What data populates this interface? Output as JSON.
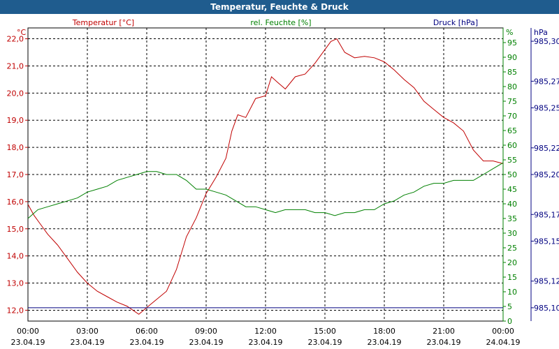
{
  "window_title": "Temperatur, Feuchte & Druck",
  "colors": {
    "temperature": "#c00000",
    "humidity": "#008000",
    "pressure": "#000080",
    "titlebar": "#1f5c8e"
  },
  "chart_data": {
    "type": "line",
    "title": "Temperatur, Feuchte & Druck",
    "grid": true,
    "legend": "top",
    "x_axis": {
      "range_hours": [
        0,
        24
      ],
      "tick_hours": [
        0,
        3,
        6,
        9,
        12,
        15,
        18,
        21,
        24
      ],
      "tick_labels": [
        [
          "00:00",
          "23.04.19"
        ],
        [
          "03:00",
          "23.04.19"
        ],
        [
          "06:00",
          "23.04.19"
        ],
        [
          "09:00",
          "23.04.19"
        ],
        [
          "12:00",
          "23.04.19"
        ],
        [
          "15:00",
          "23.04.19"
        ],
        [
          "18:00",
          "23.04.19"
        ],
        [
          "21:00",
          "23.04.19"
        ],
        [
          "00:00",
          "24.04.19"
        ]
      ]
    },
    "axes": {
      "temperature": {
        "unit": "°C",
        "range": [
          11.6,
          22.4
        ],
        "ticks": [
          "12,0",
          "13,0",
          "14,0",
          "15,0",
          "16,0",
          "17,0",
          "18,0",
          "19,0",
          "20,0",
          "21,0",
          "22,0"
        ]
      },
      "humidity": {
        "unit": "%",
        "range": [
          0,
          100
        ],
        "ticks": [
          "0",
          "5",
          "10",
          "15",
          "20",
          "25",
          "30",
          "35",
          "40",
          "45",
          "50",
          "55",
          "60",
          "65",
          "70",
          "75",
          "80",
          "85",
          "90",
          "95"
        ]
      },
      "pressure": {
        "unit": "hPa",
        "range": [
          985.09,
          985.31
        ],
        "ticks": [
          "985,10",
          "985,12",
          "985,15",
          "985,17",
          "985,20",
          "985,22",
          "985,25",
          "985,27",
          "985,30"
        ]
      }
    },
    "series": [
      {
        "name": "Temperatur [°C]",
        "axis": "temperature",
        "x": [
          0,
          0.3,
          0.6,
          1,
          1.5,
          2,
          2.5,
          3,
          3.5,
          4,
          4.5,
          5,
          5.3,
          5.6,
          6,
          6.5,
          7,
          7.5,
          8,
          8.5,
          9,
          9.5,
          10,
          10.3,
          10.6,
          11,
          11.5,
          12,
          12.3,
          12.6,
          13,
          13.5,
          14,
          14.5,
          15,
          15.3,
          15.6,
          16,
          16.5,
          17,
          17.5,
          18,
          18.5,
          19,
          19.5,
          20,
          20.5,
          21,
          21.5,
          22,
          22.5,
          23,
          23.5,
          24
        ],
        "values": [
          15.9,
          15.5,
          15.2,
          14.8,
          14.4,
          13.9,
          13.4,
          13.0,
          12.7,
          12.5,
          12.3,
          12.15,
          12.0,
          11.85,
          12.1,
          12.4,
          12.7,
          13.5,
          14.7,
          15.4,
          16.3,
          16.9,
          17.6,
          18.6,
          19.2,
          19.1,
          19.8,
          19.9,
          20.6,
          20.4,
          20.15,
          20.6,
          20.7,
          21.1,
          21.6,
          21.9,
          22.0,
          21.5,
          21.3,
          21.35,
          21.3,
          21.15,
          20.85,
          20.5,
          20.2,
          19.7,
          19.4,
          19.1,
          18.9,
          18.6,
          17.9,
          17.5,
          17.5,
          17.4
        ]
      },
      {
        "name": "rel. Feuchte [%]",
        "axis": "humidity",
        "x": [
          0,
          0.5,
          1,
          1.5,
          2,
          2.5,
          3,
          3.5,
          4,
          4.5,
          5,
          5.5,
          6,
          6.5,
          7,
          7.5,
          8,
          8.5,
          9,
          9.5,
          10,
          10.5,
          11,
          11.5,
          12,
          12.5,
          13,
          13.5,
          14,
          14.5,
          15,
          15.5,
          16,
          16.5,
          17,
          17.5,
          18,
          18.5,
          19,
          19.5,
          20,
          20.5,
          21,
          21.5,
          22,
          22.5,
          23,
          23.5,
          24
        ],
        "values": [
          35,
          38,
          39,
          40,
          41,
          42,
          44,
          45,
          46,
          48,
          49,
          50,
          51,
          51,
          50,
          50,
          48,
          45,
          45,
          44,
          43,
          41,
          39,
          39,
          38,
          37,
          38,
          38,
          38,
          37,
          37,
          36,
          37,
          37,
          38,
          38,
          40,
          41,
          43,
          44,
          46,
          47,
          47,
          48,
          48,
          48,
          50,
          52,
          54
        ]
      },
      {
        "name": "Druck [hPa]",
        "axis": "pressure",
        "x": [
          0,
          24
        ],
        "values": [
          985.1,
          985.1
        ]
      }
    ]
  }
}
